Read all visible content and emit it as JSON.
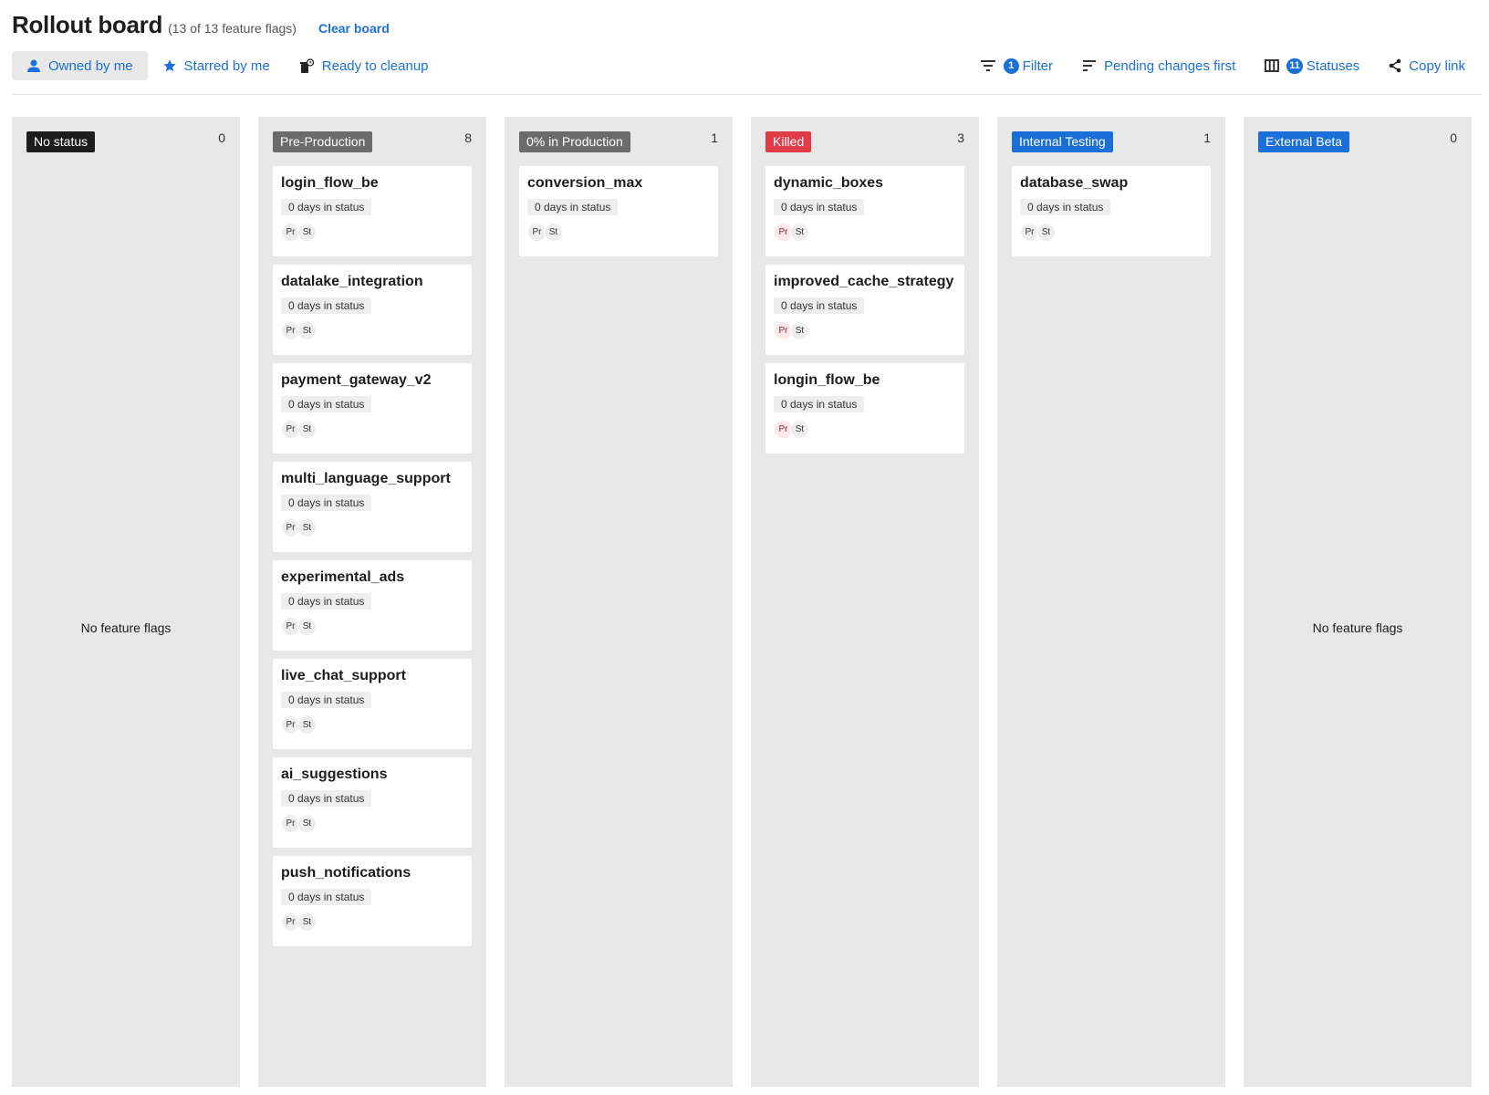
{
  "header": {
    "title": "Rollout board",
    "count": "(13 of 13 feature flags)",
    "clear": "Clear board"
  },
  "toolbar": {
    "owned": "Owned by me",
    "starred": "Starred by me",
    "cleanup": "Ready to cleanup",
    "filter_count": "1",
    "filter": "Filter",
    "sort": "Pending changes first",
    "statuses_count": "11",
    "statuses": "Statuses",
    "copy": "Copy link"
  },
  "colors": {
    "accent": "#1a6fd8",
    "killed": "#e03c47",
    "neutral": "#6b6b6b",
    "dark": "#1d1d1d"
  },
  "columns": [
    {
      "label": "No status",
      "count": "0",
      "color": "#1d1d1d",
      "empty": "No feature flags",
      "cards": []
    },
    {
      "label": "Pre-Production",
      "count": "8",
      "color": "#6b6b6b",
      "cards": [
        {
          "name": "login_flow_be",
          "days": "0 days in status",
          "a": "Pr",
          "b": "St"
        },
        {
          "name": "datalake_integration",
          "days": "0 days in status",
          "a": "Pr",
          "b": "St"
        },
        {
          "name": "payment_gateway_v2",
          "days": "0 days in status",
          "a": "Pr",
          "b": "St"
        },
        {
          "name": "multi_language_support",
          "days": "0 days in status",
          "a": "Pr",
          "b": "St"
        },
        {
          "name": "experimental_ads",
          "days": "0 days in status",
          "a": "Pr",
          "b": "St"
        },
        {
          "name": "live_chat_support",
          "days": "0 days in status",
          "a": "Pr",
          "b": "St"
        },
        {
          "name": "ai_suggestions",
          "days": "0 days in status",
          "a": "Pr",
          "b": "St"
        },
        {
          "name": "push_notifications",
          "days": "0 days in status",
          "a": "Pr",
          "b": "St"
        }
      ]
    },
    {
      "label": "0% in Production",
      "count": "1",
      "color": "#6b6b6b",
      "cards": [
        {
          "name": "conversion_max",
          "days": "0 days in status",
          "a": "Pr",
          "b": "St"
        }
      ]
    },
    {
      "label": "Killed",
      "count": "3",
      "color": "#e03c47",
      "pink": true,
      "cards": [
        {
          "name": "dynamic_boxes",
          "days": "0 days in status",
          "a": "Pr",
          "b": "St"
        },
        {
          "name": "improved_cache_strategy",
          "days": "0 days in status",
          "a": "Pr",
          "b": "St"
        },
        {
          "name": "longin_flow_be",
          "days": "0 days in status",
          "a": "Pr",
          "b": "St"
        }
      ]
    },
    {
      "label": "Internal Testing",
      "count": "1",
      "color": "#1a6fd8",
      "cards": [
        {
          "name": "database_swap",
          "days": "0 days in status",
          "a": "Pr",
          "b": "St"
        }
      ]
    },
    {
      "label": "External Beta",
      "count": "0",
      "color": "#1a6fd8",
      "empty": "No feature flags",
      "cards": []
    }
  ]
}
